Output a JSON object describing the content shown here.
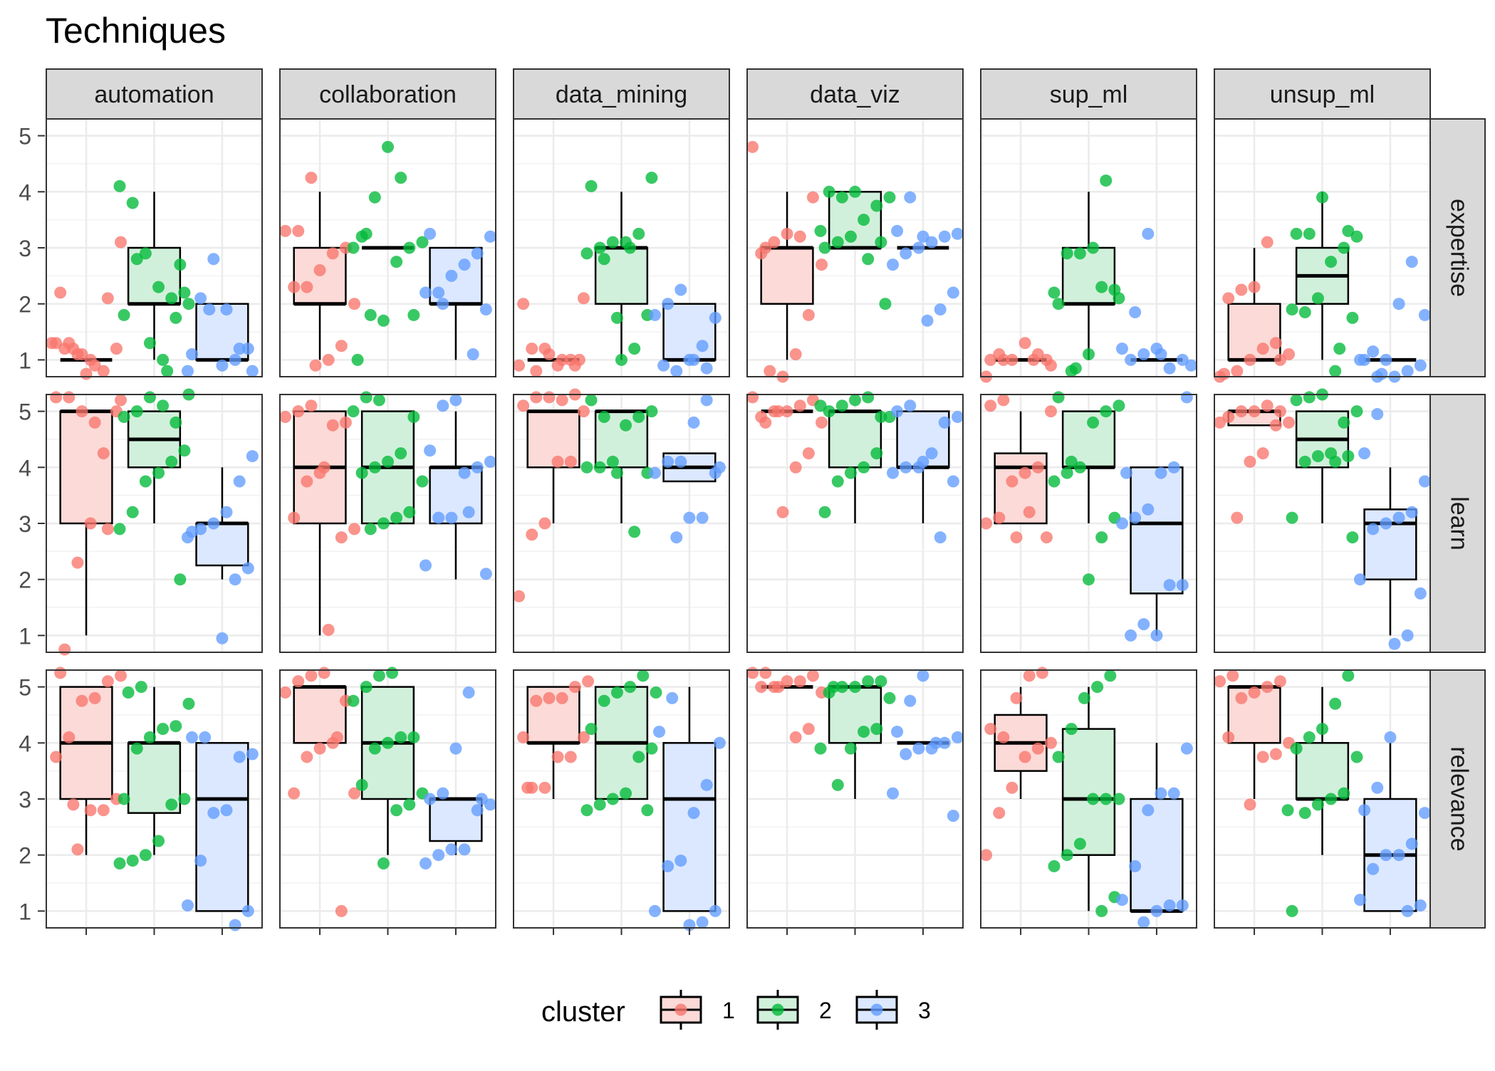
{
  "chart_data": {
    "type": "boxplot",
    "title": "Techniques",
    "facet_columns": [
      "automation",
      "collaboration",
      "data_mining",
      "data_viz",
      "sup_ml",
      "unsup_ml"
    ],
    "facet_rows": [
      "expertise",
      "learn",
      "relevance"
    ],
    "y_ticks": [
      1,
      2,
      3,
      4,
      5
    ],
    "ylim": [
      0.7,
      5.3
    ],
    "grid": true,
    "legend": {
      "title": "cluster",
      "position": "bottom",
      "items": [
        {
          "label": "1",
          "color": "#F8766D",
          "fill": "#FBDAD7"
        },
        {
          "label": "2",
          "color": "#00BA38",
          "fill": "#D1F0DB"
        },
        {
          "label": "3",
          "color": "#619CFF",
          "fill": "#DCE8FF"
        }
      ]
    },
    "boxes": {
      "expertise": {
        "automation": [
          [
            1,
            1,
            1,
            1,
            1
          ],
          [
            1,
            2,
            2,
            3,
            4
          ],
          [
            1,
            1,
            1,
            2,
            2
          ]
        ],
        "collaboration": [
          [
            1,
            2,
            2,
            3,
            4
          ],
          [
            3,
            3,
            3,
            3,
            3
          ],
          [
            1,
            2,
            2,
            3,
            3
          ]
        ],
        "data_mining": [
          [
            1,
            1,
            1,
            1,
            1
          ],
          [
            1,
            2,
            3,
            3,
            4
          ],
          [
            1,
            1,
            1,
            2,
            2
          ]
        ],
        "data_viz": [
          [
            1,
            2,
            3,
            3,
            4
          ],
          [
            3,
            3,
            3,
            4,
            4
          ],
          [
            3,
            3,
            3,
            3,
            3
          ]
        ],
        "sup_ml": [
          [
            1,
            1,
            1,
            1,
            1
          ],
          [
            1,
            2,
            2,
            3,
            4
          ],
          [
            1,
            1,
            1,
            1,
            1
          ]
        ],
        "unsup_ml": [
          [
            1,
            1,
            1,
            2,
            3
          ],
          [
            1,
            2,
            2.5,
            3,
            4
          ],
          [
            1,
            1,
            1,
            1,
            1
          ]
        ]
      },
      "learn": {
        "automation": [
          [
            1,
            3,
            5,
            5,
            5
          ],
          [
            3,
            4,
            4.5,
            5,
            5
          ],
          [
            2,
            2.25,
            3,
            3,
            4
          ]
        ],
        "collaboration": [
          [
            1,
            3,
            4,
            5,
            5
          ],
          [
            3,
            3,
            4,
            5,
            5
          ],
          [
            2,
            3,
            4,
            4,
            5
          ]
        ],
        "data_mining": [
          [
            3,
            4,
            5,
            5,
            5
          ],
          [
            3,
            4,
            5,
            5,
            5
          ],
          [
            3.75,
            3.75,
            4,
            4.25,
            4.25
          ]
        ],
        "data_viz": [
          [
            5,
            5,
            5,
            5,
            5
          ],
          [
            3,
            4,
            5,
            5,
            5
          ],
          [
            3,
            4,
            4,
            5,
            5
          ]
        ],
        "sup_ml": [
          [
            3,
            3,
            4,
            4.25,
            5
          ],
          [
            3,
            4,
            4,
            5,
            5
          ],
          [
            1,
            1.75,
            3,
            4,
            4
          ]
        ],
        "unsup_ml": [
          [
            4.75,
            4.75,
            5,
            5,
            5
          ],
          [
            3,
            4,
            4.5,
            5,
            5
          ],
          [
            1,
            2,
            3,
            3.25,
            4
          ]
        ]
      },
      "relevance": {
        "automation": [
          [
            2,
            3,
            4,
            5,
            5
          ],
          [
            2,
            2.75,
            4,
            4,
            5
          ],
          [
            1,
            1,
            3,
            4,
            4
          ]
        ],
        "collaboration": [
          [
            4,
            4,
            5,
            5,
            5
          ],
          [
            2,
            3,
            4,
            5,
            5
          ],
          [
            2,
            2.25,
            3,
            3,
            3
          ]
        ],
        "data_mining": [
          [
            3,
            4,
            4,
            5,
            5
          ],
          [
            3,
            3,
            4,
            5,
            5
          ],
          [
            1,
            1,
            3,
            4,
            5
          ]
        ],
        "data_viz": [
          [
            5,
            5,
            5,
            5,
            5
          ],
          [
            3,
            4,
            5,
            5,
            5
          ],
          [
            4,
            4,
            4,
            4,
            4
          ]
        ],
        "sup_ml": [
          [
            3,
            3.5,
            4,
            4.5,
            5
          ],
          [
            1,
            2,
            3,
            4.25,
            5
          ],
          [
            1,
            1,
            1,
            3,
            4
          ]
        ],
        "unsup_ml": [
          [
            3,
            4,
            5,
            5,
            5
          ],
          [
            2,
            3,
            3,
            4,
            5
          ],
          [
            1,
            1,
            2,
            3,
            4
          ]
        ]
      }
    },
    "points": {
      "expertise": {
        "automation": [
          [
            1.3,
            1.2,
            1.1,
            1.0,
            0.8,
            1.2,
            1.3,
            1.3,
            1.1,
            0.9,
            2.1,
            3.1,
            2.2,
            1.2,
            0.75
          ],
          [
            0.8,
            2.7,
            4.1,
            3.8,
            2.9,
            2.3,
            2.1,
            2.2,
            1.8,
            2.8,
            1.3,
            1.0,
            1.75,
            2.0
          ],
          [
            1.9,
            0.9,
            1.0,
            1.2,
            0.8,
            2.1,
            2.8,
            1.9,
            1.2,
            0.8,
            1.1
          ]
        ],
        "collaboration": [
          [
            0.9,
            1.0,
            1.25,
            2.0,
            2.3,
            2.3,
            2.6,
            2.9,
            3.0,
            3.3,
            3.3,
            4.25
          ],
          [
            1.0,
            1.8,
            1.7,
            2.75,
            3.0,
            3.1,
            3.2,
            3.9,
            4.8,
            4.25,
            1.8,
            3.0,
            3.25
          ],
          [
            1.1,
            1.9,
            2.2,
            2.2,
            2.5,
            2.7,
            2.9,
            3.2,
            3.25,
            2.0
          ]
        ],
        "data_mining": [
          [
            1.0,
            0.9,
            1.2,
            1.2,
            0.9,
            1.0,
            2.1,
            2.0,
            0.8,
            1.1,
            1.0,
            0.9
          ],
          [
            1.0,
            1.2,
            1.8,
            2.9,
            3.0,
            3.1,
            3.1,
            3.25,
            4.25,
            4.1,
            2.8,
            1.75,
            3.0
          ],
          [
            0.9,
            0.8,
            1.0,
            1.25,
            1.75,
            1.8,
            2.0,
            2.25,
            1.0,
            0.85
          ]
        ],
        "data_viz": [
          [
            0.8,
            0.7,
            1.1,
            1.8,
            2.7,
            2.9,
            3.1,
            3.25,
            3.2,
            3.9,
            4.8,
            3.0
          ],
          [
            2.0,
            3.0,
            3.1,
            3.2,
            3.5,
            3.75,
            3.9,
            4.0,
            3.9,
            4.0,
            2.8,
            3.1,
            3.3
          ],
          [
            1.7,
            1.9,
            2.2,
            2.7,
            2.9,
            3.0,
            3.1,
            3.2,
            3.25,
            3.3,
            3.9,
            3.2
          ]
        ],
        "sup_ml": [
          [
            1.0,
            1.0,
            0.7,
            1.1,
            1.0,
            1.3,
            1.1,
            0.9,
            1.0,
            1.0
          ],
          [
            0.85,
            1.1,
            2.3,
            2.25,
            2.2,
            2.9,
            2.9,
            3.0,
            4.2,
            2.1,
            2.0,
            0.8
          ],
          [
            0.9,
            1.0,
            1.1,
            1.2,
            0.85,
            1.0,
            1.2,
            1.85,
            3.25,
            1.1
          ]
        ],
        "unsup_ml": [
          [
            0.75,
            0.8,
            1.0,
            1.2,
            1.3,
            1.1,
            2.1,
            2.25,
            2.3,
            3.1,
            1.0,
            0.7
          ],
          [
            1.2,
            1.75,
            1.9,
            1.85,
            2.1,
            2.75,
            3.0,
            3.2,
            3.25,
            3.25,
            3.9,
            0.8,
            3.3
          ],
          [
            0.75,
            0.7,
            0.8,
            0.9,
            1.0,
            1.15,
            1.0,
            2.0,
            2.75,
            1.8,
            1.0,
            0.7
          ]
        ]
      },
      "learn": {
        "automation": [
          [
            0.75,
            2.3,
            3.0,
            4.25,
            5.0,
            5.25,
            5.25,
            5.0,
            4.8,
            2.9,
            5.2
          ],
          [
            2.0,
            2.9,
            3.2,
            3.75,
            3.9,
            4.1,
            4.3,
            4.9,
            5.0,
            5.25,
            5.1,
            4.8,
            5.3
          ],
          [
            0.95,
            2.0,
            2.2,
            2.75,
            2.9,
            3.0,
            3.2,
            3.75,
            4.2,
            2.85
          ]
        ],
        "collaboration": [
          [
            1.1,
            2.75,
            2.9,
            3.1,
            3.75,
            3.9,
            4.75,
            4.8,
            4.9,
            5.0,
            5.1,
            4.0
          ],
          [
            2.9,
            3.0,
            3.1,
            3.2,
            3.75,
            3.9,
            4.0,
            4.1,
            4.25,
            4.9,
            5.0,
            5.25,
            5.2
          ],
          [
            2.1,
            2.25,
            3.1,
            3.1,
            3.9,
            4.0,
            4.1,
            4.3,
            5.1,
            5.2,
            3.2
          ]
        ],
        "data_mining": [
          [
            1.7,
            2.8,
            3.0,
            4.1,
            4.1,
            5.0,
            5.1,
            5.25,
            5.25,
            5.2,
            5.3
          ],
          [
            2.85,
            3.9,
            4.0,
            4.0,
            4.1,
            4.75,
            4.9,
            5.0,
            5.2,
            4.9,
            3.9
          ],
          [
            2.75,
            3.1,
            3.1,
            3.9,
            3.9,
            4.1,
            4.1,
            4.8,
            5.2,
            4.0
          ]
        ],
        "data_viz": [
          [
            3.2,
            4.0,
            4.25,
            4.8,
            4.9,
            5.0,
            5.0,
            5.1,
            5.2,
            5.25,
            4.8,
            5.0
          ],
          [
            3.2,
            3.75,
            3.9,
            4.0,
            4.25,
            4.9,
            5.0,
            5.1,
            5.2,
            5.25,
            4.9,
            5.1
          ],
          [
            2.75,
            3.75,
            3.9,
            4.0,
            4.0,
            4.25,
            4.8,
            4.9,
            5.0,
            5.1,
            4.1
          ]
        ],
        "sup_ml": [
          [
            2.75,
            3.0,
            3.1,
            3.75,
            3.9,
            4.0,
            5.0,
            5.1,
            5.2,
            2.75,
            3.2
          ],
          [
            2.0,
            2.75,
            3.1,
            3.75,
            3.9,
            4.0,
            4.8,
            5.0,
            5.1,
            5.25,
            4.1
          ],
          [
            1.0,
            1.2,
            1.0,
            1.9,
            1.9,
            3.0,
            3.1,
            3.25,
            3.9,
            4.0,
            5.25,
            3.9
          ]
        ],
        "unsup_ml": [
          [
            3.1,
            4.1,
            4.25,
            4.75,
            4.8,
            4.9,
            5.0,
            5.0,
            5.1,
            5.0,
            4.8
          ],
          [
            2.75,
            3.1,
            4.1,
            4.2,
            4.25,
            4.8,
            5.0,
            5.2,
            5.25,
            5.3,
            4.1,
            4.2
          ],
          [
            0.85,
            1.0,
            1.75,
            2.0,
            2.9,
            3.0,
            3.1,
            3.2,
            3.75,
            4.25,
            4.95
          ]
        ]
      },
      "relevance": {
        "automation": [
          [
            2.1,
            2.8,
            2.8,
            3.0,
            3.75,
            4.1,
            4.75,
            4.8,
            5.1,
            5.2,
            5.25,
            2.9
          ],
          [
            1.85,
            1.9,
            2.0,
            2.25,
            2.9,
            3.0,
            3.0,
            3.9,
            4.1,
            4.25,
            4.3,
            4.7,
            4.9,
            5.0
          ],
          [
            0.75,
            1.0,
            1.1,
            1.9,
            2.75,
            2.8,
            3.75,
            3.8,
            4.1,
            4.1
          ]
        ],
        "collaboration": [
          [
            1.0,
            3.1,
            3.1,
            3.75,
            3.9,
            4.0,
            4.75,
            4.9,
            5.1,
            5.2,
            5.25,
            4.1
          ],
          [
            1.85,
            2.8,
            2.9,
            3.1,
            3.25,
            3.9,
            4.0,
            4.1,
            4.1,
            4.75,
            5.0,
            5.2,
            5.25
          ],
          [
            1.85,
            2.0,
            2.1,
            2.1,
            2.8,
            2.9,
            3.0,
            3.1,
            3.9,
            4.9,
            3.0
          ]
        ],
        "data_mining": [
          [
            3.2,
            3.2,
            3.75,
            3.75,
            4.1,
            4.1,
            4.75,
            4.8,
            4.8,
            5.0,
            5.1,
            3.2
          ],
          [
            2.8,
            2.8,
            2.9,
            3.0,
            3.1,
            3.75,
            3.9,
            4.25,
            4.75,
            4.9,
            5.0,
            5.2,
            4.9
          ],
          [
            0.75,
            0.8,
            1.0,
            1.0,
            1.8,
            1.9,
            2.75,
            3.25,
            4.0,
            4.2,
            4.8
          ]
        ],
        "data_viz": [
          [
            4.1,
            4.25,
            4.9,
            5.0,
            5.0,
            5.1,
            5.1,
            5.2,
            5.25,
            5.25,
            5.0
          ],
          [
            3.25,
            3.9,
            4.2,
            4.25,
            4.8,
            4.9,
            5.0,
            5.0,
            5.1,
            5.1,
            3.9,
            5.0
          ],
          [
            2.7,
            3.1,
            3.8,
            3.9,
            3.9,
            4.0,
            4.1,
            4.2,
            4.75,
            5.2,
            4.0
          ]
        ],
        "sup_ml": [
          [
            2.0,
            2.75,
            3.2,
            3.75,
            3.9,
            4.0,
            4.25,
            4.1,
            4.8,
            5.2,
            5.25
          ],
          [
            1.0,
            1.25,
            1.8,
            2.0,
            2.2,
            3.0,
            3.0,
            3.0,
            3.75,
            4.25,
            4.8,
            5.0,
            5.2
          ],
          [
            0.8,
            1.0,
            1.1,
            1.1,
            1.2,
            1.8,
            2.8,
            3.1,
            3.1,
            3.9
          ]
        ],
        "unsup_ml": [
          [
            2.9,
            3.75,
            3.8,
            4.0,
            4.1,
            4.8,
            4.9,
            5.0,
            5.1,
            5.1,
            5.2
          ],
          [
            1.0,
            2.75,
            2.9,
            3.0,
            3.1,
            3.75,
            3.9,
            4.1,
            4.25,
            4.7,
            5.2,
            2.8
          ],
          [
            1.0,
            1.1,
            1.2,
            1.75,
            2.0,
            2.0,
            2.2,
            2.75,
            2.8,
            3.2,
            4.1
          ]
        ]
      }
    }
  }
}
